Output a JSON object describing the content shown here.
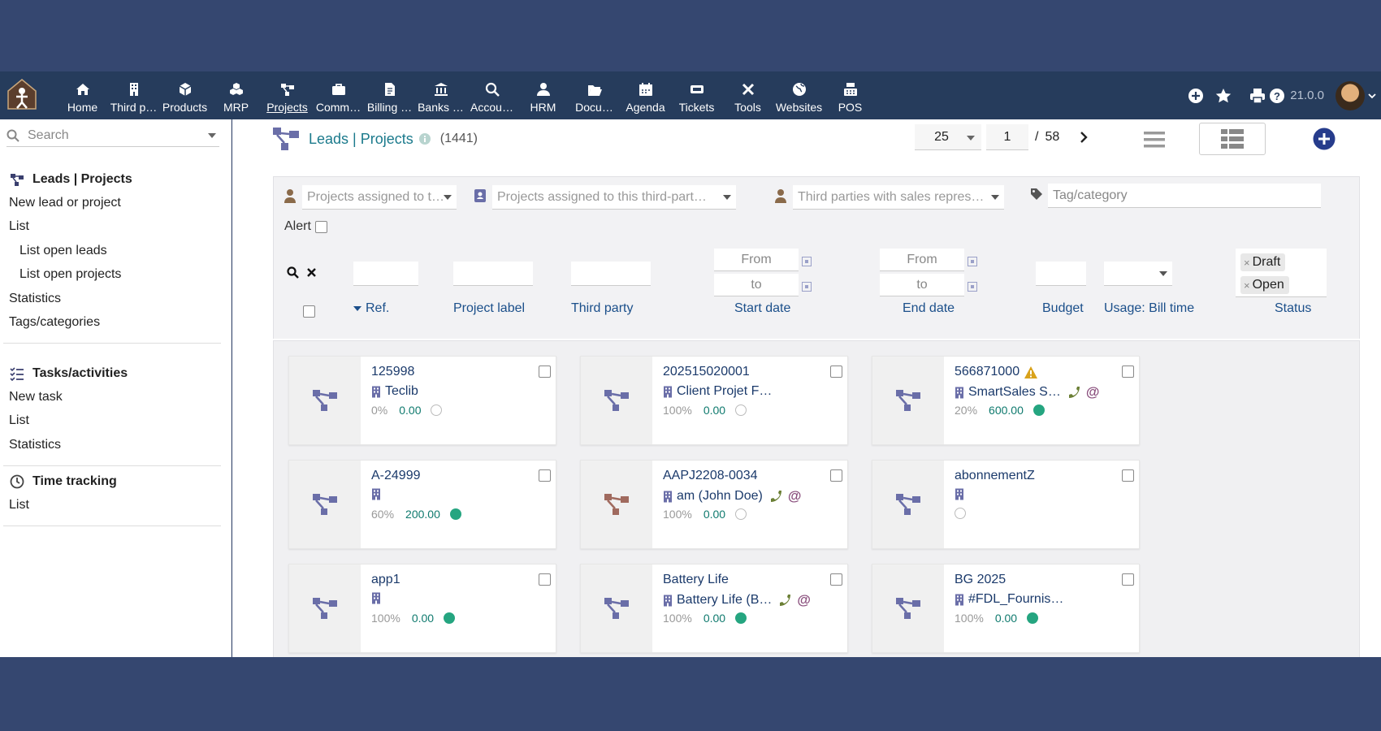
{
  "topmenu": [
    {
      "label": "Home",
      "icon": "home-icon"
    },
    {
      "label": "Third p…",
      "icon": "building-icon"
    },
    {
      "label": "Products",
      "icon": "cube-icon"
    },
    {
      "label": "MRP",
      "icon": "cubes-icon"
    },
    {
      "label": "Projects",
      "icon": "project-icon",
      "active": true
    },
    {
      "label": "Comm…",
      "icon": "suitcase-icon"
    },
    {
      "label": "Billing …",
      "icon": "invoice-icon"
    },
    {
      "label": "Banks …",
      "icon": "bank-icon"
    },
    {
      "label": "Accou…",
      "icon": "search-dollar-icon"
    },
    {
      "label": "HRM",
      "icon": "user-tie-icon"
    },
    {
      "label": "Docu…",
      "icon": "folder-open-icon"
    },
    {
      "label": "Agenda",
      "icon": "calendar-icon"
    },
    {
      "label": "Tickets",
      "icon": "ticket-icon"
    },
    {
      "label": "Tools",
      "icon": "tools-icon"
    },
    {
      "label": "Websites",
      "icon": "globe-icon"
    },
    {
      "label": "POS",
      "icon": "cash-register-icon"
    }
  ],
  "topright": {
    "version": "21.0.0"
  },
  "sidebar": {
    "search_placeholder": "Search",
    "sections": [
      {
        "title": "Leads | Projects",
        "items": [
          {
            "label": "New lead or project",
            "sub": false
          },
          {
            "label": "List",
            "sub": false
          },
          {
            "label": "List open leads",
            "sub": true
          },
          {
            "label": "List open projects",
            "sub": true
          },
          {
            "label": "Statistics",
            "sub": false
          },
          {
            "label": "Tags/categories",
            "sub": false
          }
        ]
      },
      {
        "title": "Tasks/activities",
        "items": [
          {
            "label": "New task",
            "sub": false
          },
          {
            "label": "List",
            "sub": false
          },
          {
            "label": "Statistics",
            "sub": false
          }
        ]
      },
      {
        "title": "Time tracking",
        "items": [
          {
            "label": "List",
            "sub": false
          }
        ]
      }
    ]
  },
  "header": {
    "title": "Leads | Projects",
    "count": "(1441)",
    "limit": "25",
    "page": "1",
    "pages_sep": "/",
    "total_pages": "58"
  },
  "filters": {
    "assigned_to_user": "Projects assigned to t…",
    "assigned_to_thirdparty": "Projects assigned to this third-part…",
    "sales_rep": "Third parties with sales repres…",
    "tag_placeholder": "Tag/category",
    "alert_label": "Alert",
    "from": "From",
    "to": "to",
    "status_chips": [
      "Draft",
      "Open"
    ]
  },
  "columns": [
    "Ref.",
    "Project label",
    "Third party",
    "Start date",
    "End date",
    "Budget",
    "Usage: Bill time",
    "Status"
  ],
  "cards": [
    {
      "ref": "125998",
      "thirdparty": "Teclib",
      "percent": "0%",
      "budget": "0.00",
      "status": "draft",
      "phone": false,
      "email": false,
      "warning": false,
      "picto_color": "#6a6ea8"
    },
    {
      "ref": "202515020001",
      "thirdparty": "Client Projet F…",
      "percent": "100%",
      "budget": "0.00",
      "status": "draft",
      "phone": false,
      "email": false,
      "warning": false,
      "picto_color": "#6a6ea8"
    },
    {
      "ref": "566871000",
      "thirdparty": "SmartSales S…",
      "percent": "20%",
      "budget": "600.00",
      "status": "open",
      "phone": true,
      "email": true,
      "warning": true,
      "picto_color": "#6a6ea8"
    },
    {
      "ref": "A-24999",
      "thirdparty": "",
      "percent": "60%",
      "budget": "200.00",
      "status": "open",
      "phone": false,
      "email": false,
      "warning": false,
      "picto_color": "#6a6ea8"
    },
    {
      "ref": "AAPJ2208-0034",
      "thirdparty": "am (John Doe)",
      "percent": "100%",
      "budget": "0.00",
      "status": "draft",
      "phone": true,
      "email": true,
      "warning": false,
      "picto_color": "#a06a5e"
    },
    {
      "ref": "abonnementZ",
      "thirdparty": "",
      "percent": "",
      "budget": "",
      "status": "draft",
      "phone": false,
      "email": false,
      "warning": false,
      "picto_color": "#6a6ea8"
    },
    {
      "ref": "app1",
      "thirdparty": "",
      "percent": "100%",
      "budget": "0.00",
      "status": "open",
      "phone": false,
      "email": false,
      "warning": false,
      "picto_color": "#6a6ea8"
    },
    {
      "ref": "Battery Life",
      "thirdparty": "Battery Life (B…",
      "percent": "100%",
      "budget": "0.00",
      "status": "open",
      "phone": true,
      "email": true,
      "warning": false,
      "picto_color": "#6a6ea8"
    },
    {
      "ref": "BG 2025",
      "thirdparty": "#FDL_Fournis…",
      "percent": "100%",
      "budget": "0.00",
      "status": "open",
      "phone": false,
      "email": false,
      "warning": false,
      "picto_color": "#6a6ea8"
    }
  ],
  "colors": {
    "topbar": "#263c5c",
    "frame": "#354770",
    "accent": "#1b7a8c",
    "open": "#25a580",
    "picto": "#6a6ea8"
  }
}
